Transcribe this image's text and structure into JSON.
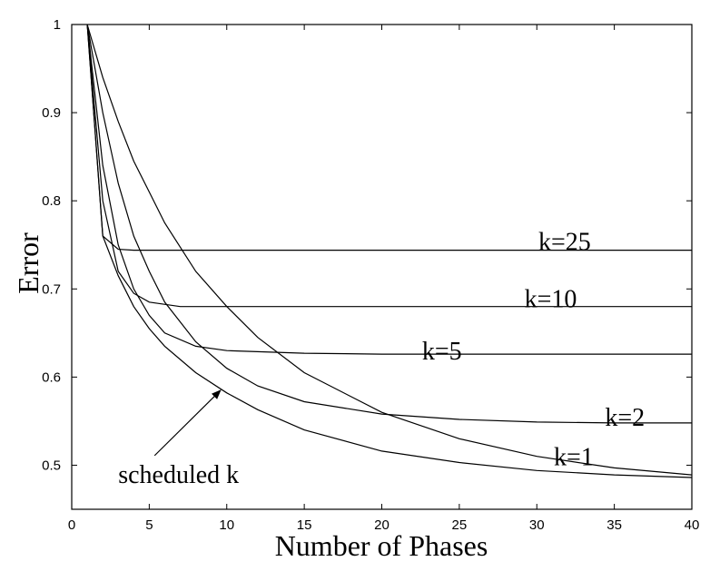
{
  "chart_data": {
    "type": "line",
    "title": "",
    "xlabel": "Number of Phases",
    "ylabel": "Error",
    "xlim": [
      0,
      40
    ],
    "ylim": [
      0.45,
      1.0
    ],
    "xticks": [
      0,
      5,
      10,
      15,
      20,
      25,
      30,
      35,
      40
    ],
    "xtick_labels": [
      "0",
      "5",
      "10",
      "15",
      "20",
      "25",
      "30",
      "35",
      "40"
    ],
    "yticks": [
      0.5,
      0.6,
      0.7,
      0.8,
      0.9,
      1.0
    ],
    "ytick_labels": [
      "0.5",
      "0.6",
      "0.7",
      "0.8",
      "0.9",
      "1"
    ],
    "grid": false,
    "legend": "none",
    "series": [
      {
        "name": "k=25",
        "x": [
          1,
          2,
          3,
          4,
          5,
          10,
          20,
          40
        ],
        "y": [
          1.0,
          0.76,
          0.745,
          0.744,
          0.744,
          0.744,
          0.744,
          0.744
        ]
      },
      {
        "name": "k=10",
        "x": [
          1,
          2,
          3,
          4,
          5,
          7,
          10,
          20,
          40
        ],
        "y": [
          1.0,
          0.8,
          0.72,
          0.695,
          0.685,
          0.68,
          0.68,
          0.68,
          0.68
        ]
      },
      {
        "name": "k=5",
        "x": [
          1,
          2,
          3,
          4,
          5,
          6,
          8,
          10,
          15,
          20,
          40
        ],
        "y": [
          1.0,
          0.84,
          0.75,
          0.7,
          0.67,
          0.65,
          0.635,
          0.63,
          0.627,
          0.626,
          0.626
        ]
      },
      {
        "name": "k=2",
        "x": [
          1,
          2,
          3,
          4,
          5,
          6,
          8,
          10,
          12,
          15,
          20,
          25,
          30,
          35,
          40
        ],
        "y": [
          1.0,
          0.9,
          0.82,
          0.76,
          0.72,
          0.685,
          0.64,
          0.61,
          0.59,
          0.572,
          0.558,
          0.552,
          0.549,
          0.548,
          0.548
        ]
      },
      {
        "name": "k=1",
        "x": [
          1,
          2,
          3,
          4,
          5,
          6,
          8,
          10,
          12,
          15,
          20,
          25,
          30,
          35,
          40
        ],
        "y": [
          1.0,
          0.94,
          0.89,
          0.845,
          0.81,
          0.775,
          0.72,
          0.68,
          0.645,
          0.605,
          0.56,
          0.53,
          0.51,
          0.497,
          0.489
        ]
      },
      {
        "name": "scheduled k",
        "x": [
          1,
          2,
          3,
          4,
          5,
          6,
          8,
          10,
          12,
          15,
          20,
          25,
          30,
          35,
          40
        ],
        "y": [
          1.0,
          0.76,
          0.715,
          0.68,
          0.655,
          0.635,
          0.605,
          0.582,
          0.563,
          0.54,
          0.516,
          0.503,
          0.494,
          0.489,
          0.486
        ]
      }
    ],
    "annotations": [
      {
        "text": "k=25",
        "x": 30.1,
        "y": 0.744
      },
      {
        "text": "k=10",
        "x": 29.2,
        "y": 0.679
      },
      {
        "text": "k=5",
        "x": 22.6,
        "y": 0.62
      },
      {
        "text": "k=2",
        "x": 34.4,
        "y": 0.545
      },
      {
        "text": "k=1",
        "x": 31.1,
        "y": 0.5
      },
      {
        "text": "scheduled k",
        "x": 3.0,
        "y": 0.48,
        "arrow_to": [
          9.6,
          0.585
        ]
      }
    ]
  }
}
